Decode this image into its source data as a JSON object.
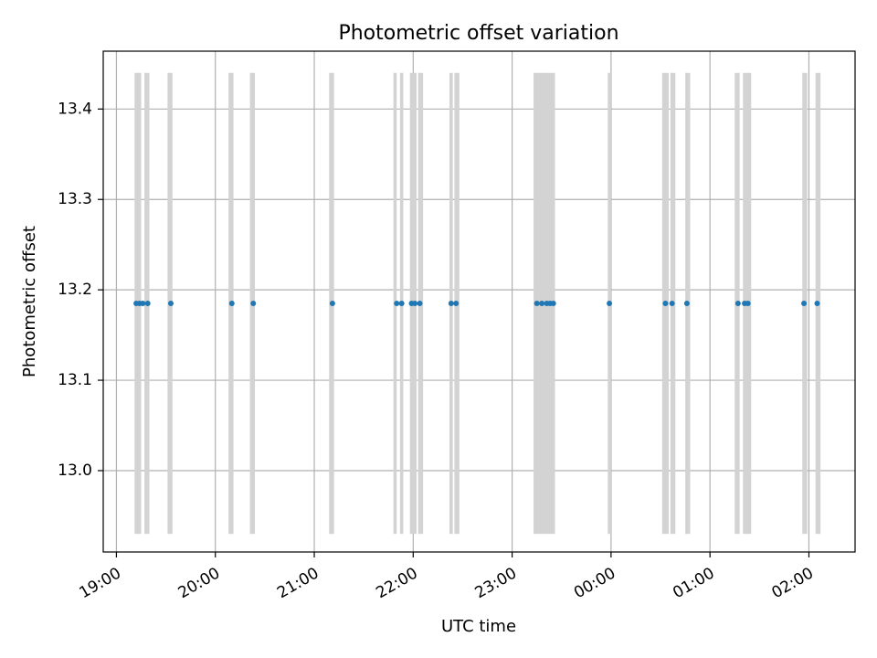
{
  "chart_data": {
    "type": "scatter",
    "title": "Photometric offset variation",
    "xlabel": "UTC time",
    "ylabel": "Photometric offset",
    "x_axis_type": "time",
    "xlim": [
      "2023-01-01 18:52",
      "2023-01-02 02:28"
    ],
    "ylim": [
      12.91,
      13.464
    ],
    "xticks": [
      {
        "t": "2023-01-01 19:00",
        "label": "19:00"
      },
      {
        "t": "2023-01-01 20:00",
        "label": "20:00"
      },
      {
        "t": "2023-01-01 21:00",
        "label": "21:00"
      },
      {
        "t": "2023-01-01 22:00",
        "label": "22:00"
      },
      {
        "t": "2023-01-01 23:00",
        "label": "23:00"
      },
      {
        "t": "2023-01-02 00:00",
        "label": "00:00"
      },
      {
        "t": "2023-01-02 01:00",
        "label": "01:00"
      },
      {
        "t": "2023-01-02 02:00",
        "label": "02:00"
      }
    ],
    "yticks": [
      {
        "v": 13.0,
        "label": "13.0"
      },
      {
        "v": 13.1,
        "label": "13.1"
      },
      {
        "v": 13.2,
        "label": "13.2"
      },
      {
        "v": 13.3,
        "label": "13.3"
      },
      {
        "v": 13.4,
        "label": "13.4"
      }
    ],
    "grid": true,
    "point_color": "#1f77b4",
    "band_color": "#d3d3d3",
    "band_range": [
      12.93,
      13.44
    ],
    "points": [
      {
        "t": "2023-01-01 19:12",
        "y": 13.185
      },
      {
        "t": "2023-01-01 19:14",
        "y": 13.185
      },
      {
        "t": "2023-01-01 19:16",
        "y": 13.185
      },
      {
        "t": "2023-01-01 19:19",
        "y": 13.185
      },
      {
        "t": "2023-01-01 19:33",
        "y": 13.185
      },
      {
        "t": "2023-01-01 20:10",
        "y": 13.185
      },
      {
        "t": "2023-01-01 20:23",
        "y": 13.185
      },
      {
        "t": "2023-01-01 21:11",
        "y": 13.185
      },
      {
        "t": "2023-01-01 21:50",
        "y": 13.185
      },
      {
        "t": "2023-01-01 21:53",
        "y": 13.185
      },
      {
        "t": "2023-01-01 21:59",
        "y": 13.185
      },
      {
        "t": "2023-01-01 22:01",
        "y": 13.185
      },
      {
        "t": "2023-01-01 22:04",
        "y": 13.185
      },
      {
        "t": "2023-01-01 22:23",
        "y": 13.185
      },
      {
        "t": "2023-01-01 22:26",
        "y": 13.185
      },
      {
        "t": "2023-01-01 23:15",
        "y": 13.185
      },
      {
        "t": "2023-01-01 23:18",
        "y": 13.185
      },
      {
        "t": "2023-01-01 23:21",
        "y": 13.185
      },
      {
        "t": "2023-01-01 23:23",
        "y": 13.185
      },
      {
        "t": "2023-01-01 23:25",
        "y": 13.185
      },
      {
        "t": "2023-01-01 23:59",
        "y": 13.185
      },
      {
        "t": "2023-01-02 00:33",
        "y": 13.185
      },
      {
        "t": "2023-01-02 00:37",
        "y": 13.185
      },
      {
        "t": "2023-01-02 00:46",
        "y": 13.185
      },
      {
        "t": "2023-01-02 01:17",
        "y": 13.185
      },
      {
        "t": "2023-01-02 01:21",
        "y": 13.185
      },
      {
        "t": "2023-01-02 01:23",
        "y": 13.185
      },
      {
        "t": "2023-01-02 01:57",
        "y": 13.185
      },
      {
        "t": "2023-01-02 02:05",
        "y": 13.185
      }
    ],
    "bands": [
      {
        "start": "2023-01-01 19:11",
        "end": "2023-01-01 19:15"
      },
      {
        "start": "2023-01-01 19:17",
        "end": "2023-01-01 19:20"
      },
      {
        "start": "2023-01-01 19:31",
        "end": "2023-01-01 19:34"
      },
      {
        "start": "2023-01-01 20:08",
        "end": "2023-01-01 20:11"
      },
      {
        "start": "2023-01-01 20:21",
        "end": "2023-01-01 20:24"
      },
      {
        "start": "2023-01-01 21:09",
        "end": "2023-01-01 21:12"
      },
      {
        "start": "2023-01-01 21:48",
        "end": "2023-01-01 21:50"
      },
      {
        "start": "2023-01-01 21:52",
        "end": "2023-01-01 21:54"
      },
      {
        "start": "2023-01-01 21:58",
        "end": "2023-01-01 22:02"
      },
      {
        "start": "2023-01-01 22:03",
        "end": "2023-01-01 22:06"
      },
      {
        "start": "2023-01-01 22:22",
        "end": "2023-01-01 22:24"
      },
      {
        "start": "2023-01-01 22:25",
        "end": "2023-01-01 22:28"
      },
      {
        "start": "2023-01-01 23:13",
        "end": "2023-01-01 23:26"
      },
      {
        "start": "2023-01-01 23:58",
        "end": "2023-01-02 00:00"
      },
      {
        "start": "2023-01-02 00:31",
        "end": "2023-01-02 00:35"
      },
      {
        "start": "2023-01-02 00:36",
        "end": "2023-01-02 00:39"
      },
      {
        "start": "2023-01-02 00:45",
        "end": "2023-01-02 00:48"
      },
      {
        "start": "2023-01-02 01:15",
        "end": "2023-01-02 01:18"
      },
      {
        "start": "2023-01-02 01:20",
        "end": "2023-01-02 01:25"
      },
      {
        "start": "2023-01-02 01:56",
        "end": "2023-01-02 01:59"
      },
      {
        "start": "2023-01-02 02:04",
        "end": "2023-01-02 02:07"
      }
    ]
  }
}
